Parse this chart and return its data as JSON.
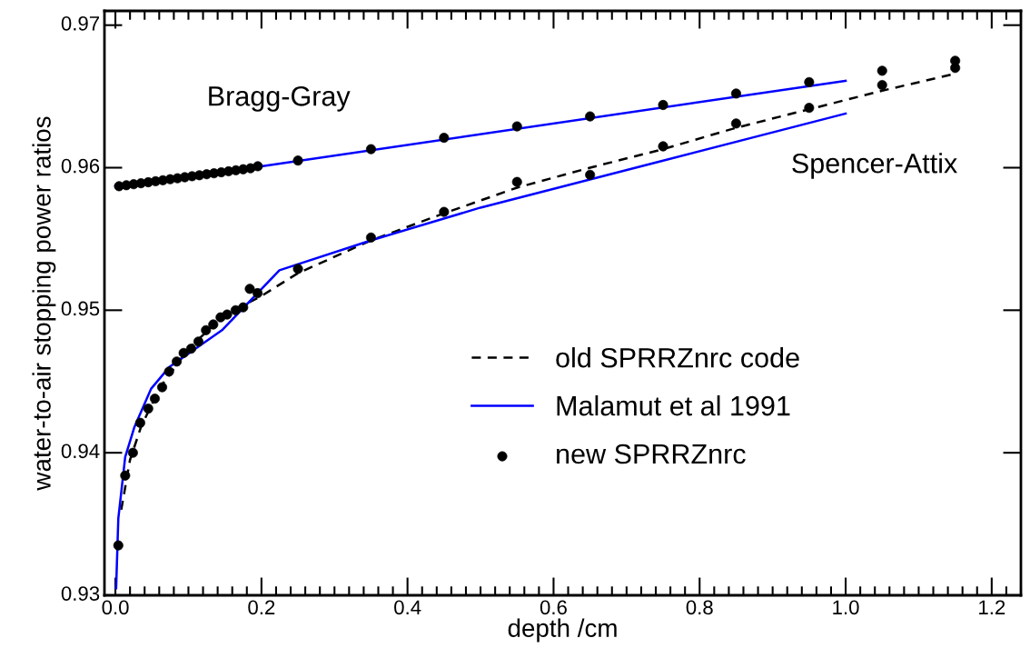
{
  "chart_data": {
    "type": "line",
    "xlabel": "depth /cm",
    "ylabel": "water-to-air stopping power ratios",
    "xlim": [
      -0.015,
      1.24
    ],
    "ylim": [
      0.93,
      0.971
    ],
    "xticks": [
      {
        "value": 0,
        "label": "0.0"
      },
      {
        "value": 0.2,
        "label": "0.2"
      },
      {
        "value": 0.4,
        "label": "0.4"
      },
      {
        "value": 0.6,
        "label": "0.6"
      },
      {
        "value": 0.8,
        "label": "0.8"
      },
      {
        "value": 1.0,
        "label": "1.0"
      },
      {
        "value": 1.2,
        "label": "1.2"
      }
    ],
    "yticks": [
      0.93,
      0.94,
      0.95,
      0.96,
      0.97
    ],
    "grid": false,
    "legend": "center",
    "annotations": [
      "Bragg-Gray",
      "Spencer-Attix"
    ],
    "series": [
      {
        "name": "old SPRRZnrc code",
        "color": "#000000",
        "line_style": "dashed",
        "marker": "none",
        "x": [
          0.008,
          0.02,
          0.035,
          0.06,
          0.1,
          0.15,
          0.2,
          0.25,
          0.35,
          0.45,
          0.55,
          0.65,
          0.75,
          0.85,
          0.95,
          1.05,
          1.15
        ],
        "values": [
          0.936,
          0.9395,
          0.9418,
          0.9445,
          0.9473,
          0.9497,
          0.951,
          0.9526,
          0.9549,
          0.9568,
          0.9586,
          0.96,
          0.9613,
          0.9628,
          0.9641,
          0.9654,
          0.9666
        ]
      },
      {
        "name": "Malamut et al 1991",
        "color": "#0000ff",
        "line_style": "solid",
        "marker": "none",
        "x": [
          0.001,
          0.004,
          0.0134,
          0.026,
          0.049,
          0.0735,
          0.146,
          0.2246,
          0.35,
          0.5,
          0.75,
          1.0
        ],
        "values": [
          0.9305,
          0.9354,
          0.9397,
          0.9418,
          0.9445,
          0.946,
          0.9486,
          0.9528,
          0.9549,
          0.9572,
          0.9605,
          0.9638
        ]
      },
      {
        "color": "#0000ff",
        "line_style": "solid",
        "marker": "none",
        "x": [
          0.0,
          0.2,
          1.0
        ],
        "values": [
          0.9587,
          0.9601,
          0.9661
        ]
      },
      {
        "name": "new SPRRZnrc",
        "type": "scatter",
        "color": "#000000",
        "marker": "circle",
        "x": [
          0.005,
          0.015,
          0.025,
          0.035,
          0.045,
          0.055,
          0.065,
          0.075,
          0.085,
          0.095,
          0.105,
          0.115,
          0.125,
          0.135,
          0.145,
          0.155,
          0.165,
          0.175,
          0.185,
          0.195,
          0.25,
          0.35,
          0.45,
          0.55,
          0.65,
          0.75,
          0.85,
          0.95,
          1.05,
          1.15,
          0.004,
          0.0134,
          0.024,
          0.034,
          0.045,
          0.054,
          0.064,
          0.0735,
          0.084,
          0.0934,
          0.1037,
          0.1137,
          0.124,
          0.134,
          0.144,
          0.153,
          0.1646,
          0.175,
          0.184,
          0.1947,
          0.25,
          0.35,
          0.45,
          0.55,
          0.65,
          0.75,
          0.85,
          0.95,
          1.05,
          1.15
        ],
        "values": [
          0.9587,
          0.95877,
          0.95884,
          0.95891,
          0.95898,
          0.95905,
          0.95912,
          0.95919,
          0.95926,
          0.95933,
          0.9594,
          0.95947,
          0.95954,
          0.95961,
          0.95968,
          0.95975,
          0.95982,
          0.95989,
          0.95996,
          0.9601,
          0.9605,
          0.9613,
          0.9621,
          0.9629,
          0.9636,
          0.9644,
          0.9652,
          0.966,
          0.9668,
          0.9675,
          0.9335,
          0.9384,
          0.94,
          0.9421,
          0.9431,
          0.9438,
          0.9446,
          0.9457,
          0.9464,
          0.947,
          0.9473,
          0.9478,
          0.9486,
          0.949,
          0.9495,
          0.9497,
          0.95,
          0.9502,
          0.9515,
          0.9512,
          0.9529,
          0.9551,
          0.9569,
          0.959,
          0.9595,
          0.9615,
          0.9631,
          0.9642,
          0.9658,
          0.967
        ]
      }
    ]
  }
}
